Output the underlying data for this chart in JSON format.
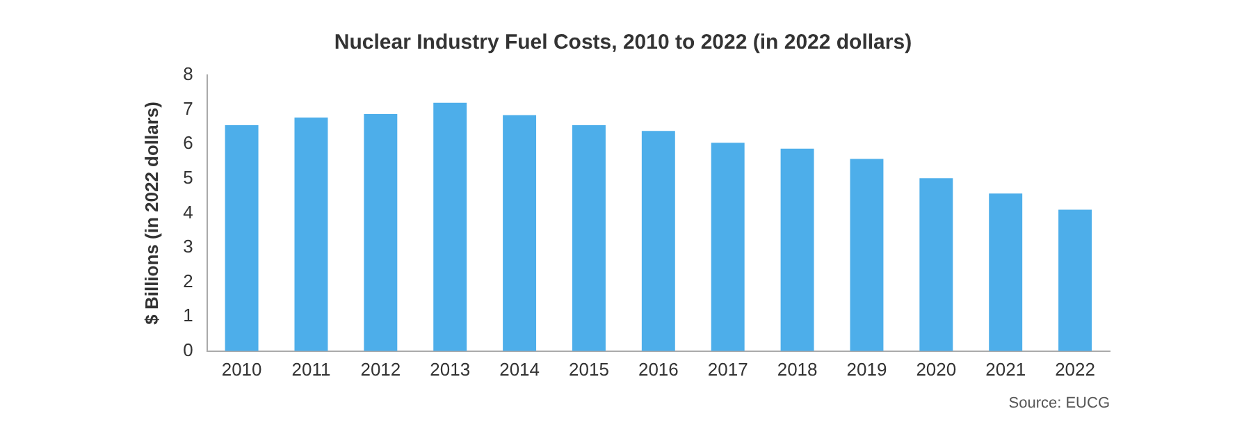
{
  "chart_data": {
    "type": "bar",
    "title": "Nuclear Industry Fuel Costs, 2010 to 2022 (in 2022 dollars)",
    "ylabel": "$ Billions (in 2022 dollars)",
    "annotations": [
      "Source: EUCG"
    ],
    "categories": [
      "2010",
      "2011",
      "2012",
      "2013",
      "2014",
      "2015",
      "2016",
      "2017",
      "2018",
      "2019",
      "2020",
      "2021",
      "2022"
    ],
    "values": [
      6.55,
      6.77,
      6.87,
      7.2,
      6.84,
      6.55,
      6.38,
      6.04,
      5.87,
      5.57,
      5.01,
      4.57,
      4.1
    ],
    "color": "#4daeea",
    "ylim": [
      0,
      8
    ],
    "yticks": [
      0,
      1,
      2,
      3,
      4,
      5,
      6,
      7,
      8
    ],
    "grid": false,
    "legend": false
  }
}
